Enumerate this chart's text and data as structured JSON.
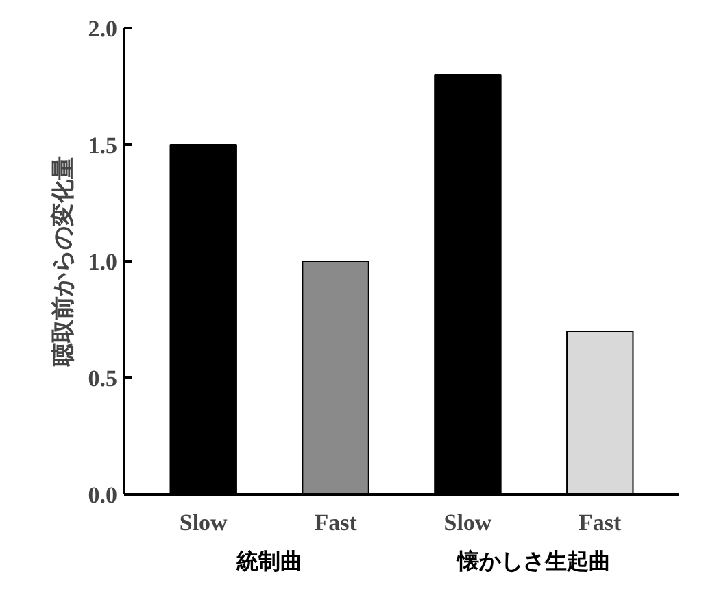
{
  "chart_data": {
    "type": "bar",
    "ylabel": "聴取前からの変化量",
    "categories": [
      "Slow",
      "Fast",
      "Slow",
      "Fast"
    ],
    "values": [
      1.5,
      1.0,
      1.8,
      0.7
    ],
    "colors": [
      "#000000",
      "#8a8a8a",
      "#000000",
      "#d9d9d9"
    ],
    "ylim": [
      0,
      2.0
    ],
    "yticks": [
      {
        "value": 0,
        "label": "0.0"
      },
      {
        "value": 0.5,
        "label": "0.5"
      },
      {
        "value": 1.0,
        "label": "1.0"
      },
      {
        "value": 1.5,
        "label": "1.5"
      },
      {
        "value": 2.0,
        "label": "2.0"
      }
    ],
    "grid": false,
    "annotations": [
      "統制曲",
      "懐かしさ生起曲"
    ]
  }
}
